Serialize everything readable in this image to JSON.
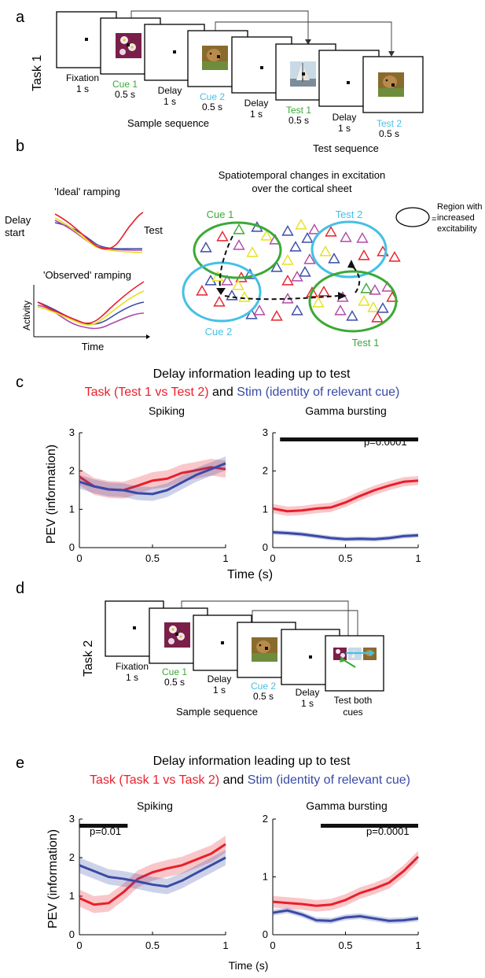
{
  "panels": {
    "a": "a",
    "b": "b",
    "c": "c",
    "d": "d",
    "e": "e"
  },
  "colors": {
    "red": "#e8202a",
    "blue": "#3a4aa6",
    "green": "#3aaa35",
    "cyan": "#45c0e6",
    "yellow": "#e6e021",
    "purple": "#b04aa6"
  },
  "task1": {
    "label": "Task 1",
    "frames": [
      {
        "name": "Fixation",
        "dur": "1 s",
        "color": "black"
      },
      {
        "name": "Cue 1",
        "dur": "0.5 s",
        "color": "green"
      },
      {
        "name": "Delay",
        "dur": "1 s",
        "color": "black"
      },
      {
        "name": "Cue 2",
        "dur": "0.5 s",
        "color": "cyan"
      },
      {
        "name": "Delay",
        "dur": "1 s",
        "color": "black"
      },
      {
        "name": "Test 1",
        "dur": "0.5 s",
        "color": "green"
      },
      {
        "name": "Delay",
        "dur": "1 s",
        "color": "black"
      },
      {
        "name": "Test 2",
        "dur": "0.5 s",
        "color": "cyan"
      }
    ],
    "sample_sequence": "Sample sequence",
    "test_sequence": "Test sequence"
  },
  "panel_b": {
    "ideal": "'Ideal' ramping",
    "observed": "'Observed' ramping",
    "delay_start_1": "Delay",
    "delay_start_2": "start",
    "test": "Test",
    "activity": "Activity",
    "time": "Time",
    "title_1": "Spatiotemporal changes in excitation",
    "title_2": "over the cortical sheet",
    "legend_1": "Region with",
    "legend_2": "increased",
    "legend_3": "excitability",
    "legend_eq": "=",
    "cue1": "Cue 1",
    "cue2": "Cue 2",
    "test1": "Test 1",
    "test2": "Test 2"
  },
  "panel_c": {
    "title": "Delay information leading up to test",
    "task_label": "Task (Test 1 vs Test 2)",
    "and": "and",
    "stim_label": "Stim (identity of relevant cue)",
    "ylabel": "PEV (information)",
    "xlabel": "Time (s)",
    "pval": "p=0.0001"
  },
  "task2": {
    "label": "Task 2",
    "frames": [
      {
        "name": "Fixation",
        "dur": "1 s",
        "color": "black"
      },
      {
        "name": "Cue 1",
        "dur": "0.5 s",
        "color": "green"
      },
      {
        "name": "Delay",
        "dur": "1 s",
        "color": "black"
      },
      {
        "name": "Cue 2",
        "dur": "0.5 s",
        "color": "cyan"
      },
      {
        "name": "Delay",
        "dur": "1 s",
        "color": "black"
      }
    ],
    "test_both_1": "Test both",
    "test_both_2": "cues",
    "sample_sequence": "Sample sequence"
  },
  "panel_e": {
    "title": "Delay information leading up to test",
    "task_label": "Task (Task 1 vs Task 2)",
    "and": "and",
    "stim_label": "Stim (identity of relevant cue)",
    "ylabel": "PEV (information)",
    "xlabel": "Time (s)",
    "pval_left": "p=0.01",
    "pval_right": "p=0.0001"
  },
  "chart_data": [
    {
      "type": "line",
      "panel": "c",
      "title": "Spiking",
      "xlabel": "",
      "ylabel": "PEV (information)",
      "xlim": [
        0,
        1
      ],
      "ylim": [
        0,
        3
      ],
      "xticks": [
        "0",
        "0.5",
        "1"
      ],
      "yticks": [
        "0",
        "1",
        "2",
        "3"
      ],
      "x": [
        0,
        0.1,
        0.2,
        0.3,
        0.4,
        0.5,
        0.6,
        0.7,
        0.8,
        0.9,
        1.0
      ],
      "series": [
        {
          "color": "red",
          "values": [
            1.85,
            1.6,
            1.52,
            1.5,
            1.62,
            1.75,
            1.8,
            1.95,
            2.02,
            2.1,
            2.05
          ],
          "band": 0.22
        },
        {
          "color": "blue",
          "values": [
            1.72,
            1.6,
            1.52,
            1.5,
            1.42,
            1.4,
            1.5,
            1.7,
            1.9,
            2.05,
            2.2
          ],
          "band": 0.18
        }
      ]
    },
    {
      "type": "line",
      "panel": "c",
      "title": "Gamma bursting",
      "xlabel": "",
      "ylabel": "",
      "xlim": [
        0,
        1
      ],
      "ylim": [
        0,
        3
      ],
      "xticks": [
        "0",
        "0.5",
        "1"
      ],
      "yticks": [
        "0",
        "1",
        "2",
        "3"
      ],
      "x": [
        0,
        0.1,
        0.2,
        0.3,
        0.4,
        0.5,
        0.6,
        0.7,
        0.8,
        0.9,
        1.0
      ],
      "series": [
        {
          "color": "red",
          "values": [
            1.02,
            0.95,
            0.97,
            1.02,
            1.05,
            1.18,
            1.35,
            1.5,
            1.62,
            1.72,
            1.75
          ],
          "band": 0.12
        },
        {
          "color": "blue",
          "values": [
            0.4,
            0.38,
            0.35,
            0.3,
            0.25,
            0.22,
            0.23,
            0.22,
            0.25,
            0.3,
            0.32
          ],
          "band": 0.06
        }
      ],
      "sig_bar": [
        0.05,
        1.0
      ]
    },
    {
      "type": "line",
      "panel": "e",
      "title": "Spiking",
      "xlabel": "",
      "ylabel": "PEV (information)",
      "xlim": [
        0,
        1
      ],
      "ylim": [
        0,
        3
      ],
      "xticks": [
        "0",
        "0.5",
        "1"
      ],
      "yticks": [
        "0",
        "1",
        "2",
        "3"
      ],
      "x": [
        0,
        0.1,
        0.2,
        0.3,
        0.4,
        0.5,
        0.6,
        0.7,
        0.8,
        0.9,
        1.0
      ],
      "series": [
        {
          "color": "red",
          "values": [
            0.95,
            0.78,
            0.82,
            1.1,
            1.45,
            1.62,
            1.72,
            1.8,
            1.95,
            2.1,
            2.35
          ],
          "band": 0.22
        },
        {
          "color": "blue",
          "values": [
            1.8,
            1.65,
            1.5,
            1.45,
            1.38,
            1.3,
            1.25,
            1.4,
            1.6,
            1.8,
            2.0
          ],
          "band": 0.2
        }
      ],
      "sig_bar": [
        0.0,
        0.33
      ]
    },
    {
      "type": "line",
      "panel": "e",
      "title": "Gamma bursting",
      "xlabel": "",
      "ylabel": "",
      "xlim": [
        0,
        1
      ],
      "ylim": [
        0,
        2
      ],
      "xticks": [
        "0",
        "0.5",
        "1"
      ],
      "yticks": [
        "0",
        "1",
        "2"
      ],
      "x": [
        0,
        0.1,
        0.2,
        0.3,
        0.4,
        0.5,
        0.6,
        0.7,
        0.8,
        0.9,
        1.0
      ],
      "series": [
        {
          "color": "red",
          "values": [
            0.57,
            0.55,
            0.53,
            0.5,
            0.52,
            0.6,
            0.72,
            0.8,
            0.9,
            1.1,
            1.35
          ],
          "band": 0.1
        },
        {
          "color": "blue",
          "values": [
            0.38,
            0.42,
            0.35,
            0.25,
            0.24,
            0.3,
            0.32,
            0.28,
            0.24,
            0.25,
            0.28
          ],
          "band": 0.05
        }
      ],
      "sig_bar": [
        0.33,
        1.0
      ]
    }
  ]
}
